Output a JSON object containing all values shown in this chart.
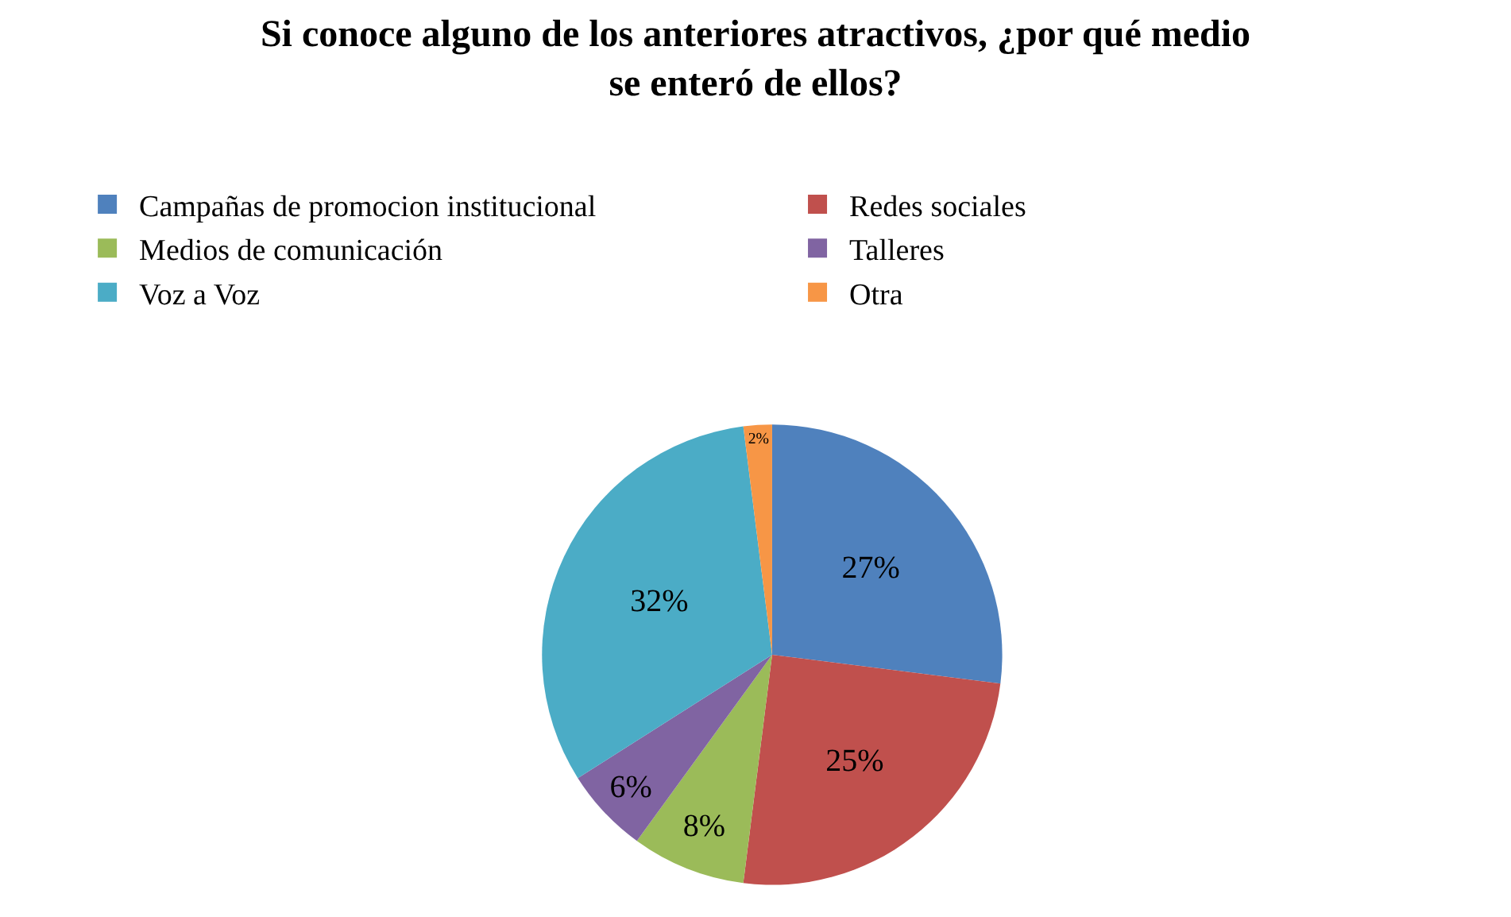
{
  "chart_data": {
    "type": "pie",
    "title": "Si conoce alguno de los anteriores atractivos, ¿por qué medio\nse enteró de ellos?",
    "categories": [
      "Campañas de promocion institucional",
      "Redes sociales",
      "Medios de comunicación",
      "Talleres",
      "Voz a Voz",
      "Otra"
    ],
    "values": [
      27,
      25,
      8,
      6,
      32,
      2
    ],
    "value_labels": [
      "27%",
      "25%",
      "8%",
      "6%",
      "32%",
      "2%"
    ],
    "colors": [
      "#4f81bd",
      "#c0504d",
      "#9bbb59",
      "#8064a2",
      "#4bacc6",
      "#f79646"
    ],
    "legend": "top"
  }
}
